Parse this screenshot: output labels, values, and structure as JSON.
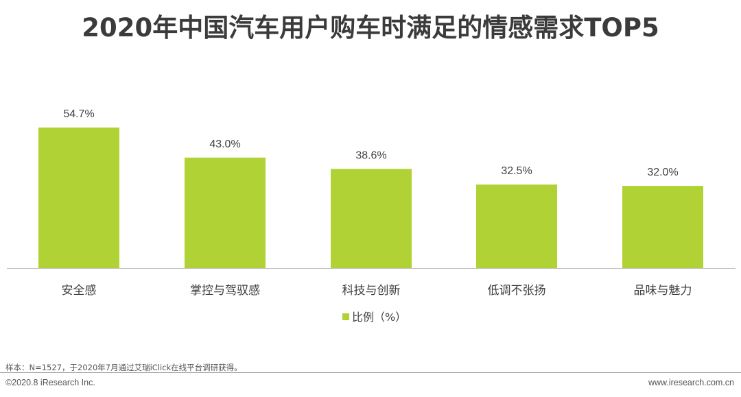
{
  "title": "2020年中国汽车用户购车时满足的情感需求TOP5",
  "chart_data": {
    "type": "bar",
    "categories": [
      "安全感",
      "掌控与驾驭感",
      "科技与创新",
      "低调不张扬",
      "品味与魅力"
    ],
    "series": [
      {
        "name": "比例（%）",
        "values": [
          54.7,
          43.0,
          38.6,
          32.5,
          32.0
        ],
        "color": "#b1d235"
      }
    ],
    "data_labels": [
      "54.7%",
      "43.0%",
      "38.6%",
      "32.5%",
      "32.0%"
    ],
    "ylim": [
      0,
      55
    ],
    "grid": false,
    "legend_position": "bottom"
  },
  "footer": {
    "source": "样本：N=1527，于2020年7月通过艾瑞iClick在线平台调研获得。",
    "copyright": "©2020.8 iResearch Inc.",
    "website": "www.iresearch.com.cn"
  }
}
